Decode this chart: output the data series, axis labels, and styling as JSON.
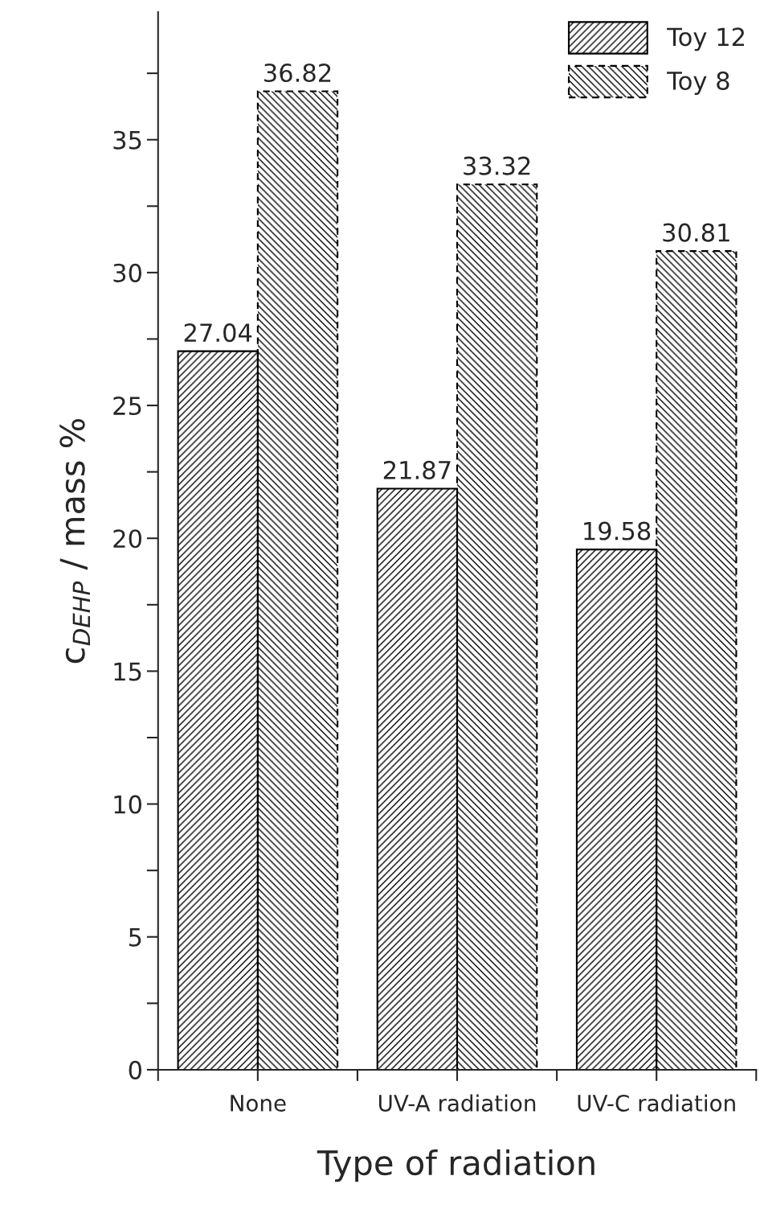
{
  "chart_data": {
    "type": "bar",
    "xlabel": "Type of radiation",
    "ylabel": "c$_{DEHP}$ / mass %",
    "categories": [
      "None",
      "UV-A radiation",
      "UV-C radiation"
    ],
    "series": [
      {
        "name": "Toy 12",
        "color": "#000000",
        "values": [
          27.04,
          21.87,
          19.58
        ],
        "line_style": "solid"
      },
      {
        "name": "Toy 8",
        "color": "#000000",
        "values": [
          36.82,
          33.32,
          30.81
        ],
        "line_style": "dashed"
      }
    ],
    "ylim": [
      0,
      39.8
    ],
    "yticks": [
      0,
      {
        "value": 2.5,
        "label": null
      },
      5,
      {
        "value": 7.5,
        "label": null
      },
      10,
      {
        "value": 12.5,
        "label": null
      },
      15,
      {
        "value": 17.5,
        "label": null
      },
      20,
      {
        "value": 22.5,
        "label": null
      },
      25,
      {
        "value": 27.5,
        "label": null
      },
      30,
      {
        "value": 32.5,
        "label": null
      },
      35,
      {
        "value": 37.5,
        "label": null
      }
    ],
    "data_labels": true,
    "legend": "top right",
    "grid": false
  }
}
